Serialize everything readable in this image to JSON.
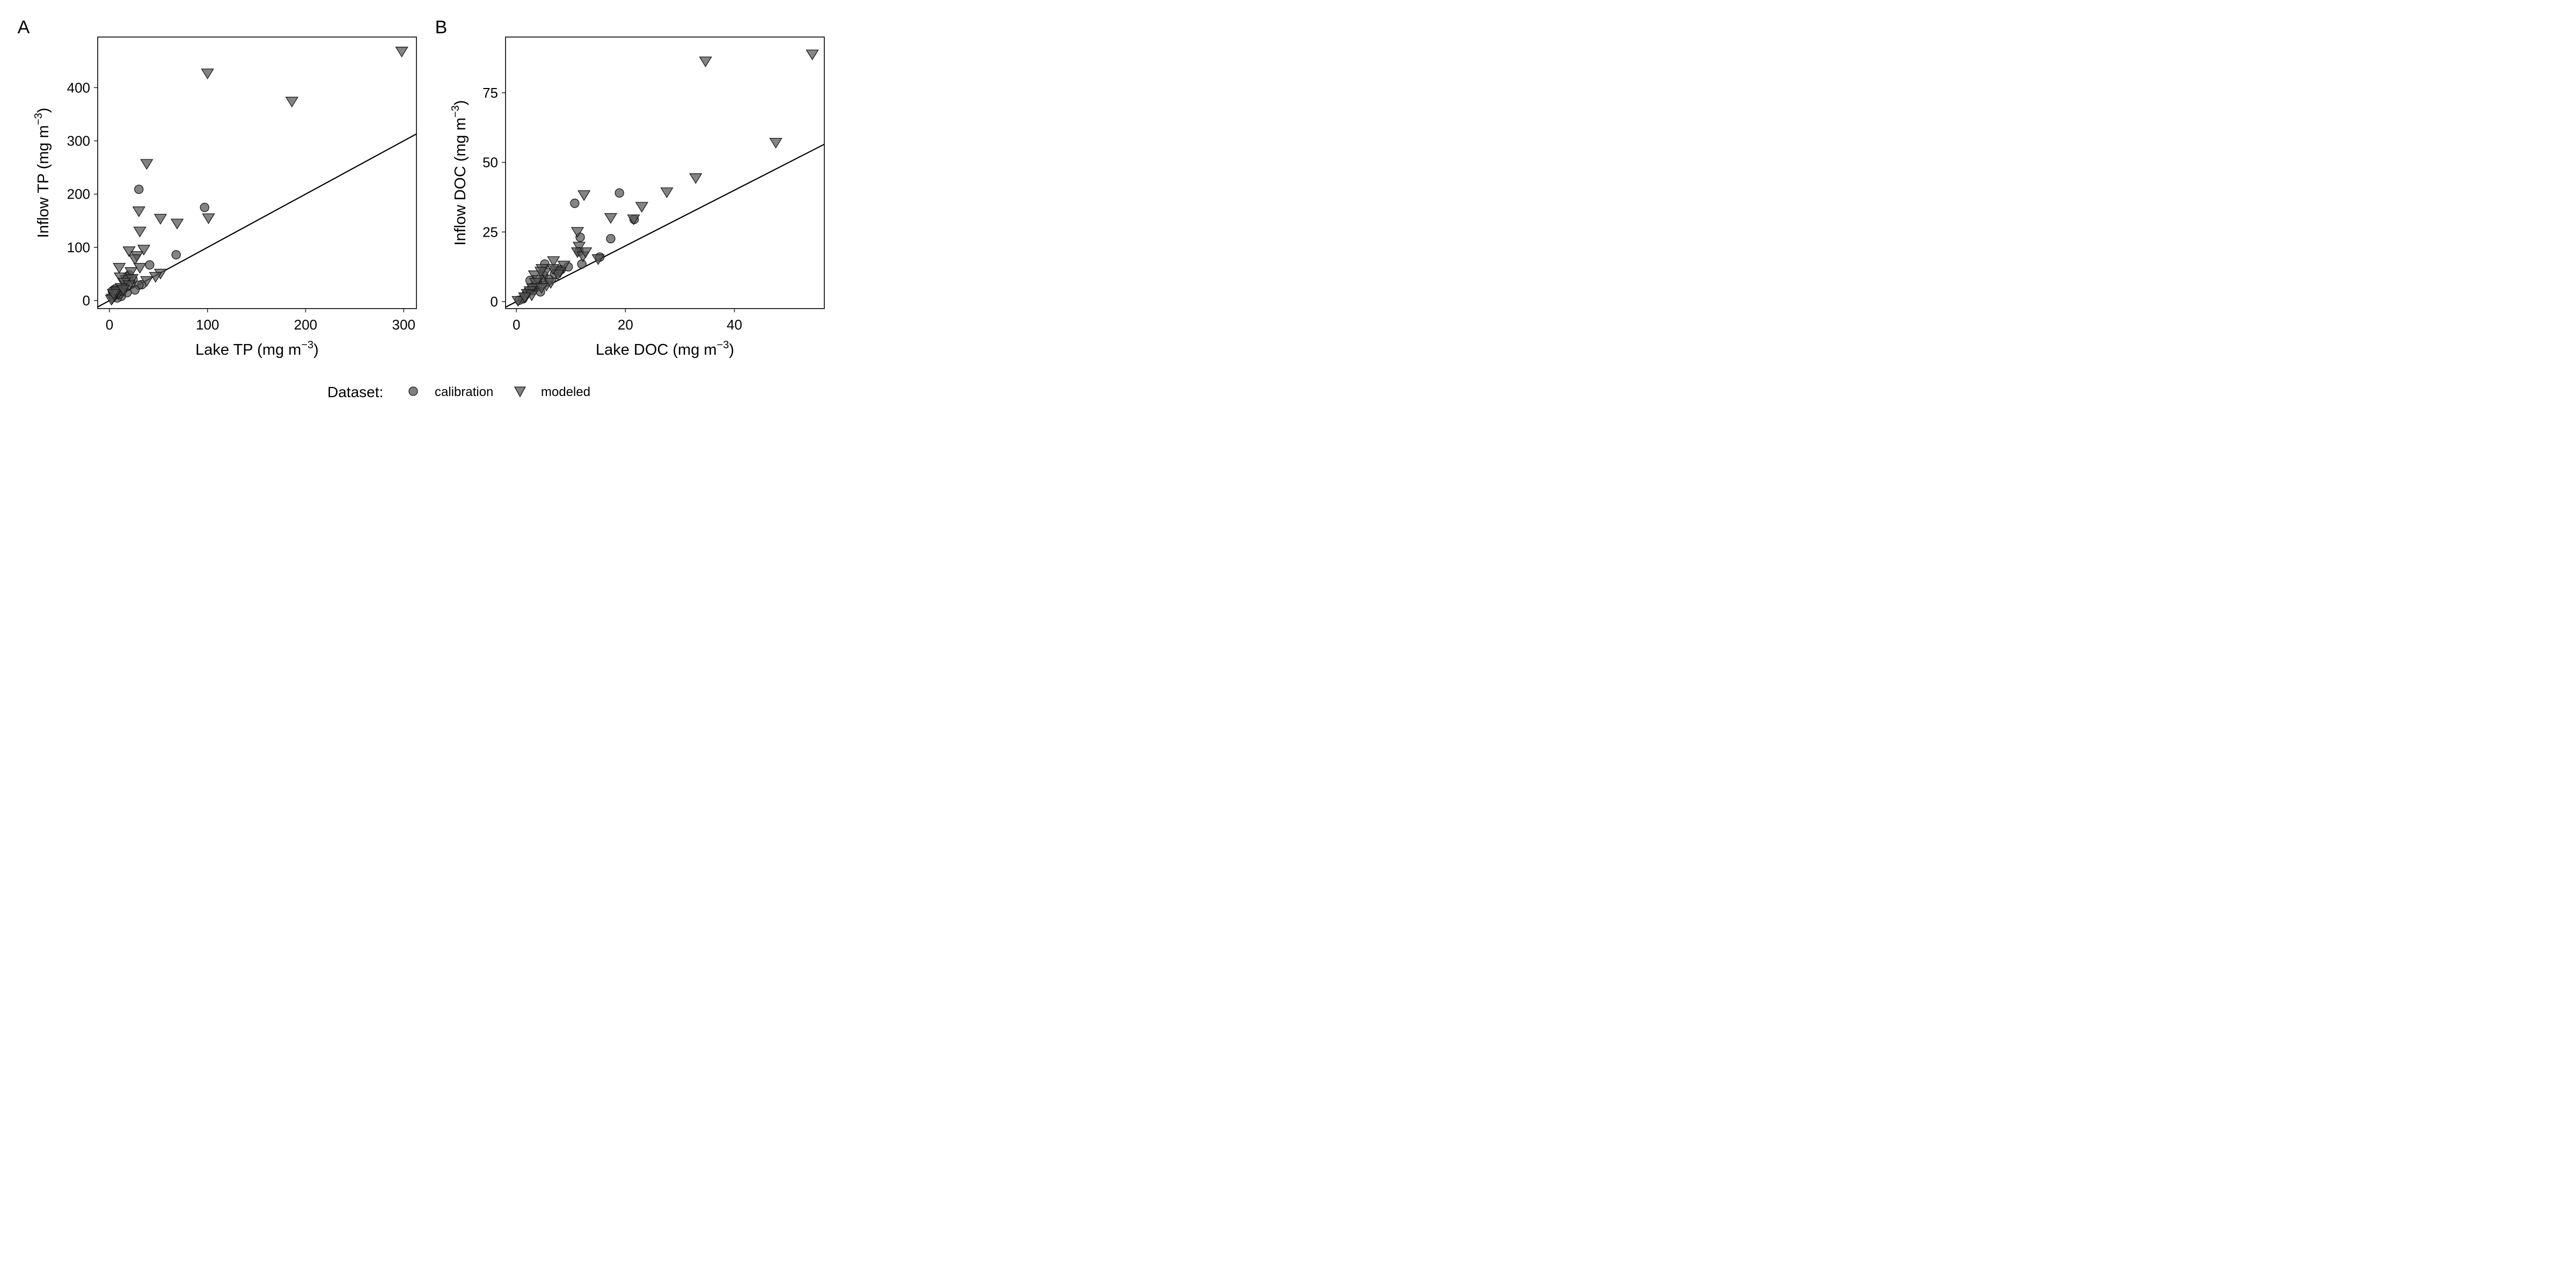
{
  "legend": {
    "title": "Dataset:",
    "items": [
      {
        "label": "calibration",
        "shape": "circle"
      },
      {
        "label": "modeled",
        "shape": "triangle-down"
      }
    ]
  },
  "colors": {
    "marker_fill": "#555555",
    "marker_stroke": "#1a1a1a",
    "line": "#000000"
  },
  "chart_data": [
    {
      "type": "scatter",
      "panel": "A",
      "xlabel": "Lake TP (mg m",
      "ylabel": "Inflow TP (mg m",
      "unit_exponent": "−3",
      "xlim": [
        -12,
        313
      ],
      "ylim": [
        -15,
        495
      ],
      "xticks": [
        0,
        100,
        200,
        300
      ],
      "yticks": [
        0,
        100,
        200,
        300,
        400
      ],
      "reference_line": "1:1",
      "grid": false,
      "series": [
        {
          "name": "calibration",
          "points": [
            [
              30,
              209
            ],
            [
              97,
              175
            ],
            [
              68,
              86
            ],
            [
              41,
              67
            ],
            [
              33,
              30
            ],
            [
              30,
              29
            ],
            [
              26,
              20
            ],
            [
              18,
              15
            ],
            [
              12,
              8
            ],
            [
              8,
              5
            ],
            [
              5,
              10
            ],
            [
              3,
              18
            ],
            [
              6,
              22
            ],
            [
              10,
              12
            ],
            [
              15,
              25
            ],
            [
              22,
              33
            ],
            [
              20,
              48
            ],
            [
              18,
              45
            ],
            [
              11,
              20
            ],
            [
              9,
              16
            ],
            [
              7,
              14
            ],
            [
              4,
              9
            ],
            [
              13,
              18
            ],
            [
              24,
              40
            ],
            [
              16,
              30
            ]
          ]
        },
        {
          "name": "modeled",
          "points": [
            [
              298,
              469
            ],
            [
              100,
              428
            ],
            [
              186,
              375
            ],
            [
              38,
              258
            ],
            [
              30,
              169
            ],
            [
              52,
              155
            ],
            [
              69,
              146
            ],
            [
              101,
              156
            ],
            [
              31,
              131
            ],
            [
              35,
              97
            ],
            [
              20,
              94
            ],
            [
              28,
              85
            ],
            [
              26,
              79
            ],
            [
              31,
              63
            ],
            [
              10,
              63
            ],
            [
              22,
              55
            ],
            [
              52,
              52
            ],
            [
              47,
              46
            ],
            [
              38,
              38
            ],
            [
              17,
              40
            ],
            [
              11,
              45
            ],
            [
              23,
              42
            ],
            [
              15,
              35
            ],
            [
              20,
              30
            ],
            [
              12,
              25
            ],
            [
              8,
              20
            ],
            [
              9,
              15
            ],
            [
              6,
              12
            ],
            [
              5,
              9
            ],
            [
              3,
              5
            ],
            [
              2,
              3
            ],
            [
              7,
              18
            ],
            [
              4,
              14
            ],
            [
              14,
              22
            ]
          ]
        }
      ]
    },
    {
      "type": "scatter",
      "panel": "B",
      "xlabel": "Lake DOC (mg m",
      "ylabel": "Inflow DOC (mg m",
      "unit_exponent": "−3",
      "xlim": [
        -2,
        56.5
      ],
      "ylim": [
        -2.5,
        95
      ],
      "xticks": [
        0,
        20,
        40
      ],
      "yticks": [
        0,
        25,
        50,
        75
      ],
      "reference_line": "1:1",
      "grid": false,
      "series": [
        {
          "name": "calibration",
          "points": [
            [
              10.7,
              35.3
            ],
            [
              18.9,
              39
            ],
            [
              21.6,
              29.5
            ],
            [
              17.3,
              22.6
            ],
            [
              11.7,
              23.1
            ],
            [
              11.5,
              18
            ],
            [
              12,
              13.5
            ],
            [
              15.3,
              16
            ],
            [
              9.5,
              12.5
            ],
            [
              8.2,
              11.5
            ],
            [
              5.2,
              13.5
            ],
            [
              5,
              9.5
            ],
            [
              4.8,
              7.5
            ],
            [
              3.9,
              5.5
            ],
            [
              4.4,
              3.5
            ],
            [
              3.5,
              6
            ],
            [
              2.5,
              7.6
            ],
            [
              2.8,
              5
            ],
            [
              2,
              3.5
            ],
            [
              1.5,
              2
            ],
            [
              1.2,
              1
            ],
            [
              0.5,
              0.5
            ],
            [
              3,
              4
            ],
            [
              6,
              8
            ],
            [
              7,
              10
            ]
          ]
        },
        {
          "name": "modeled",
          "points": [
            [
              54.3,
              89
            ],
            [
              34.7,
              86.5
            ],
            [
              47.6,
              57.3
            ],
            [
              32.9,
              44.6
            ],
            [
              27.6,
              39.5
            ],
            [
              12.4,
              38.5
            ],
            [
              23,
              34.3
            ],
            [
              17.3,
              30.3
            ],
            [
              21.5,
              29.8
            ],
            [
              11.2,
              25.3
            ],
            [
              11.5,
              20
            ],
            [
              11.2,
              18
            ],
            [
              12.2,
              16.5
            ],
            [
              12.7,
              18
            ],
            [
              15,
              15.5
            ],
            [
              6.8,
              14.8
            ],
            [
              8.7,
              13.2
            ],
            [
              7.3,
              11.4
            ],
            [
              8,
              10.8
            ],
            [
              7.6,
              10
            ],
            [
              6.7,
              12
            ],
            [
              5.2,
              10.5
            ],
            [
              4.7,
              12
            ],
            [
              3.3,
              9.7
            ],
            [
              4.5,
              11
            ],
            [
              4,
              8
            ],
            [
              3.5,
              7
            ],
            [
              5.5,
              6
            ],
            [
              6.3,
              7
            ],
            [
              3,
              5
            ],
            [
              2.5,
              4
            ],
            [
              2,
              3
            ],
            [
              2.8,
              2.5
            ],
            [
              4.6,
              5.2
            ],
            [
              0.3,
              0.5
            ],
            [
              1.5,
              1.8
            ]
          ]
        }
      ]
    }
  ]
}
